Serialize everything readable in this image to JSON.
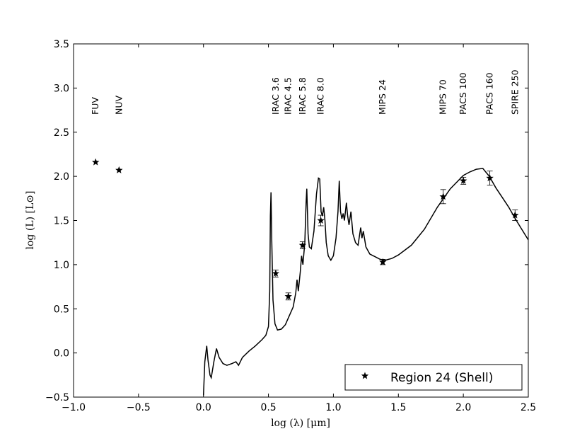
{
  "chart_data": {
    "type": "scatter",
    "xlabel": "log (λ) [μm]",
    "ylabel": "log (L) [L⊙]",
    "xlim": [
      -1.0,
      2.5
    ],
    "ylim": [
      -0.5,
      3.5
    ],
    "x_ticks": [
      -1.0,
      -0.5,
      0.0,
      0.5,
      1.0,
      1.5,
      2.0,
      2.5
    ],
    "x_tick_labels": [
      "−1.0",
      "−0.5",
      "0.0",
      "0.5",
      "1.0",
      "1.5",
      "2.0",
      "2.5"
    ],
    "y_ticks": [
      -0.5,
      0.0,
      0.5,
      1.0,
      1.5,
      2.0,
      2.5,
      3.0,
      3.5
    ],
    "y_tick_labels": [
      "−0.5",
      "0.0",
      "0.5",
      "1.0",
      "1.5",
      "2.0",
      "2.5",
      "3.0",
      "3.5"
    ],
    "grid": false,
    "legend_position": "bottom-right",
    "bands": [
      {
        "label": "FUV",
        "x": -0.83
      },
      {
        "label": "NUV",
        "x": -0.65
      },
      {
        "label": "IRAC 3.6",
        "x": 0.556
      },
      {
        "label": "IRAC 4.5",
        "x": 0.653
      },
      {
        "label": "IRAC 5.8",
        "x": 0.763
      },
      {
        "label": "IRAC 8.0",
        "x": 0.903
      },
      {
        "label": "MIPS 24",
        "x": 1.38
      },
      {
        "label": "MIPS 70",
        "x": 1.845
      },
      {
        "label": "PACS 100",
        "x": 2.0
      },
      {
        "label": "PACS 160",
        "x": 2.204
      },
      {
        "label": "SPIRE 250",
        "x": 2.398
      }
    ],
    "series": [
      {
        "name": "Region 24 (Shell)",
        "marker": "star",
        "points": [
          {
            "x": -0.83,
            "y": 2.16
          },
          {
            "x": -0.65,
            "y": 2.07
          },
          {
            "x": 0.556,
            "y": 0.9,
            "err": 0.04
          },
          {
            "x": 0.653,
            "y": 0.64,
            "err": 0.04
          },
          {
            "x": 0.763,
            "y": 1.22,
            "err": 0.04
          },
          {
            "x": 0.903,
            "y": 1.5,
            "err": 0.06
          },
          {
            "x": 1.38,
            "y": 1.03,
            "err": 0.03
          },
          {
            "x": 1.845,
            "y": 1.77,
            "err": 0.08
          },
          {
            "x": 2.0,
            "y": 1.95,
            "err": 0.04
          },
          {
            "x": 2.204,
            "y": 1.98,
            "err": 0.08
          },
          {
            "x": 2.398,
            "y": 1.56,
            "err": 0.06
          }
        ]
      }
    ],
    "model_curve": [
      [
        0.0,
        -0.48
      ],
      [
        0.01,
        -0.1
      ],
      [
        0.025,
        0.08
      ],
      [
        0.035,
        -0.08
      ],
      [
        0.05,
        -0.25
      ],
      [
        0.06,
        -0.28
      ],
      [
        0.08,
        -0.1
      ],
      [
        0.1,
        0.05
      ],
      [
        0.12,
        -0.05
      ],
      [
        0.15,
        -0.12
      ],
      [
        0.18,
        -0.14
      ],
      [
        0.22,
        -0.12
      ],
      [
        0.25,
        -0.1
      ],
      [
        0.27,
        -0.14
      ],
      [
        0.3,
        -0.05
      ],
      [
        0.35,
        0.02
      ],
      [
        0.4,
        0.08
      ],
      [
        0.45,
        0.15
      ],
      [
        0.48,
        0.2
      ],
      [
        0.5,
        0.3
      ],
      [
        0.51,
        0.7
      ],
      [
        0.515,
        1.55
      ],
      [
        0.52,
        1.82
      ],
      [
        0.525,
        1.3
      ],
      [
        0.535,
        0.6
      ],
      [
        0.55,
        0.33
      ],
      [
        0.57,
        0.26
      ],
      [
        0.6,
        0.27
      ],
      [
        0.63,
        0.32
      ],
      [
        0.66,
        0.42
      ],
      [
        0.69,
        0.52
      ],
      [
        0.71,
        0.68
      ],
      [
        0.72,
        0.83
      ],
      [
        0.73,
        0.7
      ],
      [
        0.745,
        0.92
      ],
      [
        0.755,
        1.1
      ],
      [
        0.765,
        1.0
      ],
      [
        0.78,
        1.25
      ],
      [
        0.79,
        1.7
      ],
      [
        0.795,
        1.86
      ],
      [
        0.805,
        1.35
      ],
      [
        0.815,
        1.2
      ],
      [
        0.83,
        1.18
      ],
      [
        0.85,
        1.38
      ],
      [
        0.87,
        1.8
      ],
      [
        0.885,
        1.98
      ],
      [
        0.895,
        1.97
      ],
      [
        0.905,
        1.6
      ],
      [
        0.915,
        1.55
      ],
      [
        0.925,
        1.65
      ],
      [
        0.935,
        1.5
      ],
      [
        0.945,
        1.25
      ],
      [
        0.96,
        1.1
      ],
      [
        0.98,
        1.05
      ],
      [
        1.0,
        1.1
      ],
      [
        1.02,
        1.3
      ],
      [
        1.035,
        1.6
      ],
      [
        1.045,
        1.95
      ],
      [
        1.055,
        1.6
      ],
      [
        1.065,
        1.52
      ],
      [
        1.075,
        1.58
      ],
      [
        1.085,
        1.5
      ],
      [
        1.1,
        1.7
      ],
      [
        1.11,
        1.55
      ],
      [
        1.12,
        1.45
      ],
      [
        1.135,
        1.6
      ],
      [
        1.15,
        1.35
      ],
      [
        1.17,
        1.25
      ],
      [
        1.19,
        1.22
      ],
      [
        1.21,
        1.42
      ],
      [
        1.22,
        1.3
      ],
      [
        1.23,
        1.38
      ],
      [
        1.25,
        1.2
      ],
      [
        1.28,
        1.12
      ],
      [
        1.32,
        1.09
      ],
      [
        1.36,
        1.06
      ],
      [
        1.4,
        1.05
      ],
      [
        1.45,
        1.07
      ],
      [
        1.5,
        1.11
      ],
      [
        1.6,
        1.22
      ],
      [
        1.7,
        1.4
      ],
      [
        1.8,
        1.65
      ],
      [
        1.9,
        1.86
      ],
      [
        2.0,
        2.01
      ],
      [
        2.05,
        2.05
      ],
      [
        2.1,
        2.08
      ],
      [
        2.15,
        2.09
      ],
      [
        2.2,
        2.0
      ],
      [
        2.25,
        1.87
      ],
      [
        2.3,
        1.76
      ],
      [
        2.35,
        1.65
      ],
      [
        2.4,
        1.52
      ],
      [
        2.45,
        1.4
      ],
      [
        2.5,
        1.28
      ]
    ]
  }
}
